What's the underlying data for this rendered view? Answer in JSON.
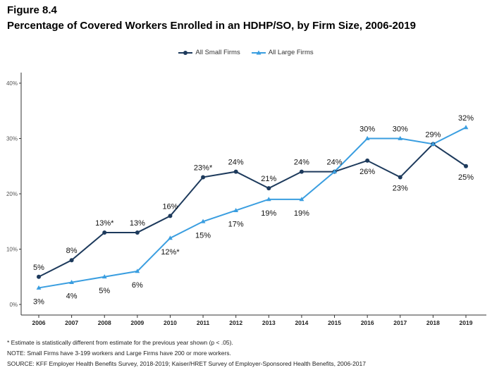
{
  "figure_label": "Figure 8.4",
  "title": "Percentage of Covered Workers Enrolled in an HDHP/SO, by Firm Size, 2006-2019",
  "colors": {
    "small": "#1d3a5c",
    "large": "#3a9ee0",
    "axis": "#333333"
  },
  "chart_data": {
    "type": "line",
    "x": [
      "2006",
      "2007",
      "2008",
      "2009",
      "2010",
      "2011",
      "2012",
      "2013",
      "2014",
      "2015",
      "2016",
      "2017",
      "2018",
      "2019"
    ],
    "ylim": [
      0,
      40
    ],
    "yticks": [
      "0%",
      "10%",
      "20%",
      "30%",
      "40%"
    ],
    "ytick_values": [
      0,
      10,
      20,
      30,
      40
    ],
    "legend_position": "top-center",
    "series": [
      {
        "name": "All Small Firms",
        "marker": "circle",
        "values": [
          5,
          8,
          13,
          13,
          16,
          23,
          24,
          21,
          24,
          24,
          26,
          23,
          29,
          25
        ],
        "labels": [
          "5%",
          "8%",
          "13%*",
          "13%",
          "16%",
          "23%*",
          "24%",
          "21%",
          "24%",
          "24%",
          "26%",
          "23%",
          "29%",
          "25%"
        ]
      },
      {
        "name": "All Large Firms",
        "marker": "triangle",
        "values": [
          3,
          4,
          5,
          6,
          12,
          15,
          17,
          19,
          19,
          24,
          30,
          30,
          29,
          32
        ],
        "labels": [
          "3%",
          "4%",
          "5%",
          "6%",
          "12%*",
          "15%",
          "17%",
          "19%",
          "19%",
          "",
          "30%",
          "30%",
          "",
          "32%"
        ]
      }
    ]
  },
  "notes": [
    "* Estimate is statistically different from estimate for the previous year shown (p < .05).",
    "NOTE: Small Firms have 3-199 workers and Large Firms have 200 or more workers.",
    "SOURCE: KFF Employer Health Benefits Survey, 2018-2019; Kaiser/HRET Survey of Employer-Sponsored Health Benefits, 2006-2017"
  ]
}
